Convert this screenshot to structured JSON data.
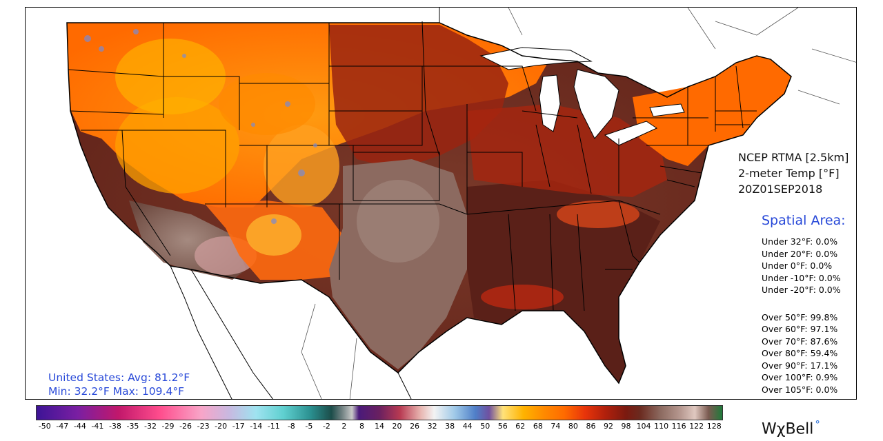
{
  "product": {
    "line1": "NCEP RTMA [2.5km]",
    "line2": "2-meter Temp [°F]",
    "line3": "20Z01SEP2018"
  },
  "spatial": {
    "title": "Spatial Area:",
    "under": [
      "Under 32°F: 0.0%",
      "Under 20°F: 0.0%",
      "Under 0°F: 0.0%",
      "Under -10°F: 0.0%",
      "Under -20°F: 0.0%"
    ],
    "over": [
      "Over 50°F: 99.8%",
      "Over 60°F: 97.1%",
      "Over 70°F: 87.6%",
      "Over 80°F: 59.4%",
      "Over 90°F: 17.1%",
      "Over 100°F: 0.9%",
      "Over 105°F: 0.0%"
    ]
  },
  "stats": {
    "line1": "United States: Avg:  81.2°F",
    "line2": "Min:  32.2°F Max: 109.4°F"
  },
  "colorbar": {
    "ticks": [
      "-50",
      "-47",
      "-44",
      "-41",
      "-38",
      "-35",
      "-32",
      "-29",
      "-26",
      "-23",
      "-20",
      "-17",
      "-14",
      "-11",
      "-8",
      "-5",
      "-2",
      "2",
      "8",
      "14",
      "20",
      "26",
      "32",
      "38",
      "44",
      "50",
      "56",
      "62",
      "68",
      "74",
      "80",
      "86",
      "92",
      "98",
      "104",
      "110",
      "116",
      "122",
      "128"
    ]
  },
  "logo": {
    "text": "WχBell"
  },
  "colors": {
    "hot_brown": "#6b2a1f",
    "dark_red": "#8f1f10",
    "red": "#c8290f",
    "orange": "#ff6a00",
    "yellow_orange": "#ffb300",
    "desert_tan": "#9d8073",
    "cool_blue": "#8090c8",
    "label_blue": "#2748d8"
  }
}
